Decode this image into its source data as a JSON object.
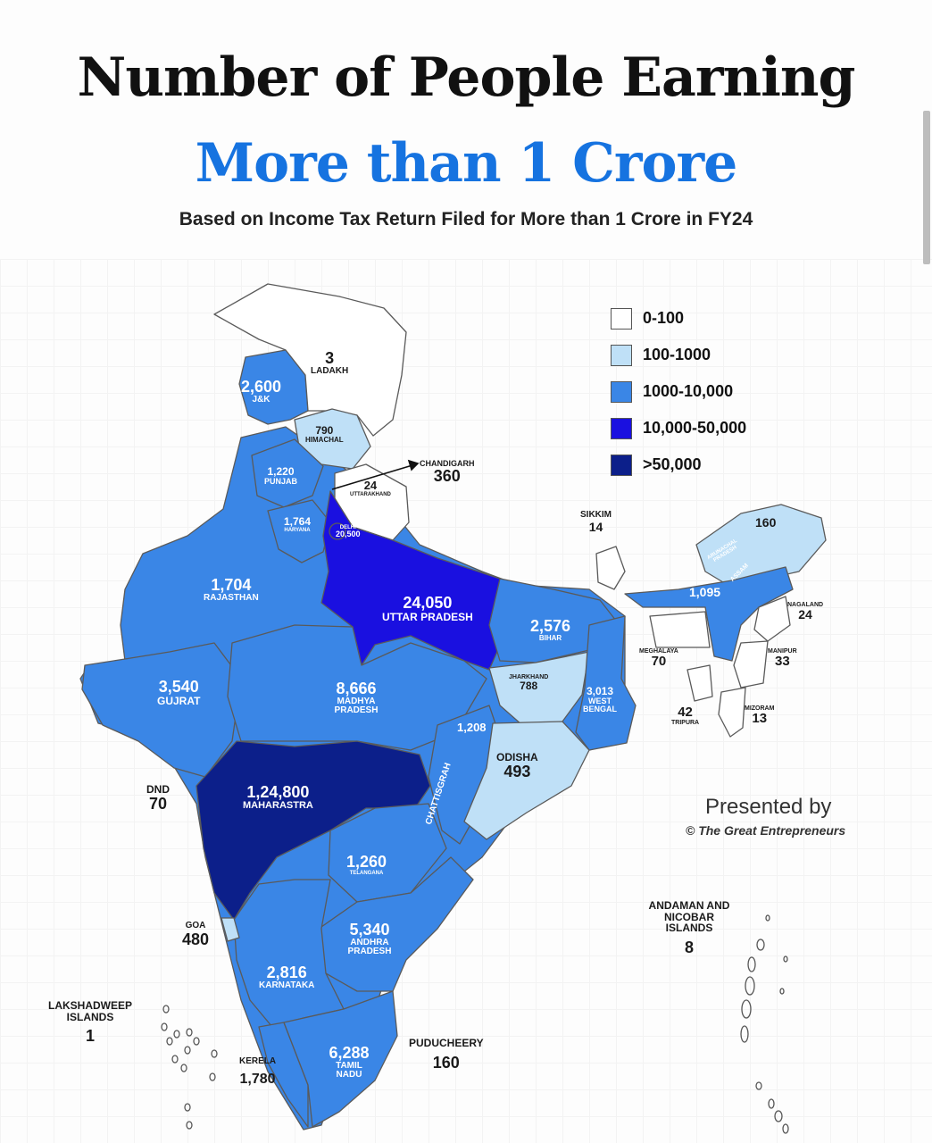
{
  "title": "Number of People Earning",
  "subtitle": "More than 1 Crore",
  "caption": "Based on Income Tax Return Filed for More than 1 Crore in FY24",
  "legend": [
    {
      "range": "0-100",
      "color": "#ffffff"
    },
    {
      "range": "100-1000",
      "color": "#bfe0f7"
    },
    {
      "range": "1000-10,000",
      "color": "#3a86e6"
    },
    {
      "range": "10,000-50,000",
      "color": "#1a10e0"
    },
    {
      "range": ">50,000",
      "color": "#0c1f8a"
    }
  ],
  "regions": {
    "ladakh": {
      "name": "LADAKH",
      "value": "3"
    },
    "jk": {
      "name": "J&K",
      "value": "2,600"
    },
    "himachal": {
      "name": "HIMACHAL",
      "value": "790"
    },
    "chandigarh": {
      "name": "CHANDIGARH",
      "value": "360"
    },
    "punjab": {
      "name": "PUNJAB",
      "value": "1,220"
    },
    "uttarakhand": {
      "name": "UTTARAKHAND",
      "value": "24"
    },
    "haryana": {
      "name": "HARYANA",
      "value": "1,764"
    },
    "delhi": {
      "name": "DELHI",
      "value": "20,500"
    },
    "rajasthan": {
      "name": "RAJASTHAN",
      "value": "1,704"
    },
    "uttar_pradesh": {
      "name": "UTTAR PRADESH",
      "value": "24,050"
    },
    "bihar": {
      "name": "BIHAR",
      "value": "2,576"
    },
    "sikkim": {
      "name": "SIKKIM",
      "value": "14"
    },
    "arunachal": {
      "name": "ARUNACHAL PRADESH",
      "value": "160"
    },
    "assam": {
      "name": "ASSAM",
      "value": "1,095"
    },
    "nagaland": {
      "name": "NAGALAND",
      "value": "24"
    },
    "meghalaya": {
      "name": "MEGHALAYA",
      "value": "70"
    },
    "manipur": {
      "name": "MANIPUR",
      "value": "33"
    },
    "tripura": {
      "name": "TRIPURA",
      "value": "42"
    },
    "mizoram": {
      "name": "MIZORAM",
      "value": "13"
    },
    "jharkhand": {
      "name": "JHARKHAND",
      "value": "788"
    },
    "west_bengal": {
      "name": "WEST BENGAL",
      "value": "3,013"
    },
    "gujarat": {
      "name": "GUJRAT",
      "value": "3,540"
    },
    "madhya_pradesh": {
      "name": "MADHYA PRADESH",
      "value": "8,666"
    },
    "chhattisgarh": {
      "name": "CHATTISGRAH",
      "value": "1,208"
    },
    "odisha": {
      "name": "ODISHA",
      "value": "493"
    },
    "dnd": {
      "name": "DND",
      "value": "70"
    },
    "maharashtra": {
      "name": "MAHARASTRA",
      "value": "1,24,800"
    },
    "telangana": {
      "name": "TELANGANA",
      "value": "1,260"
    },
    "goa": {
      "name": "GOA",
      "value": "480"
    },
    "andhra_pradesh": {
      "name": "ANDHRA PRADESH",
      "value": "5,340"
    },
    "karnataka": {
      "name": "KARNATAKA",
      "value": "2,816"
    },
    "lakshadweep": {
      "name": "LAKSHADWEEP ISLANDS",
      "value": "1"
    },
    "kerala": {
      "name": "KERELA",
      "value": "1,780"
    },
    "tamil_nadu": {
      "name": "TAMIL NADU",
      "value": "6,288"
    },
    "puducherry": {
      "name": "PUDUCHEERY",
      "value": "160"
    },
    "andaman": {
      "name": "ANDAMAN AND NICOBAR ISLANDS",
      "value": "8"
    }
  },
  "presented_by": "Presented by",
  "credit": "© The Great Entrepreneurs"
}
